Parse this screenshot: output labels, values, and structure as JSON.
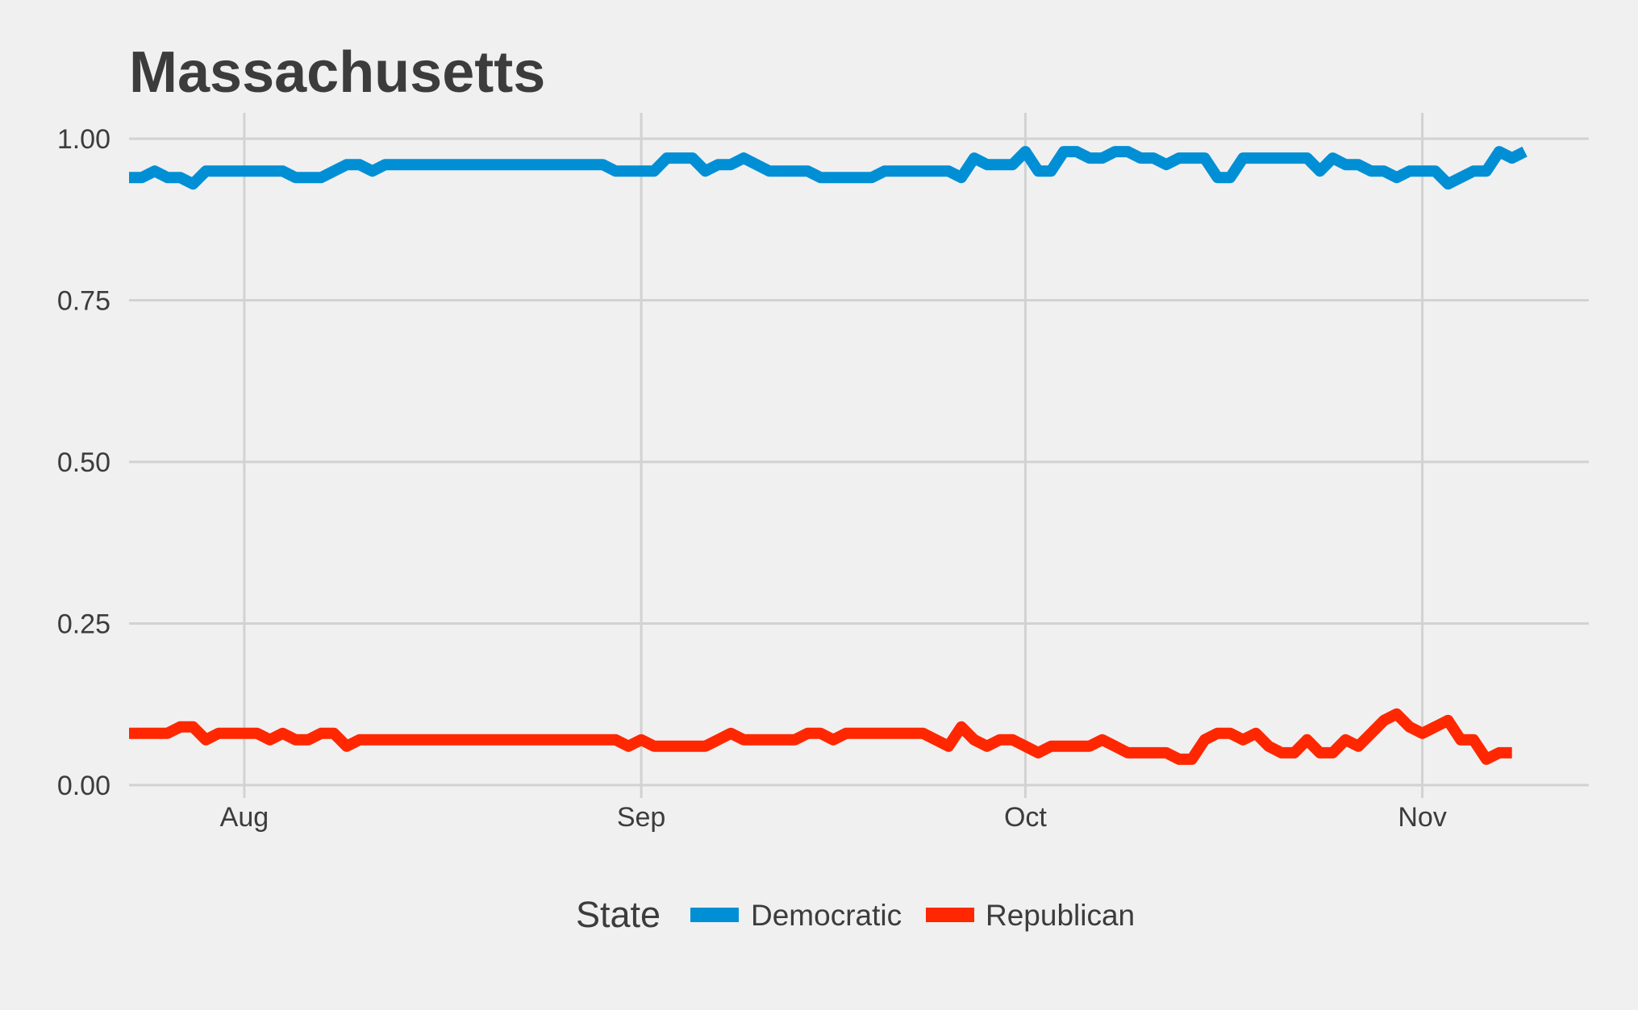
{
  "chart_data": {
    "type": "line",
    "title": "Massachusetts",
    "xlabel": "",
    "ylabel": "",
    "x_ticks": [
      "Aug",
      "Sep",
      "Oct",
      "Nov"
    ],
    "x_tick_dates": [
      "2016-08-01",
      "2016-09-01",
      "2016-10-01",
      "2016-11-01"
    ],
    "xlim": [
      "2016-07-23",
      "2016-11-14"
    ],
    "y_ticks": [
      "0.00",
      "0.25",
      "0.50",
      "0.75",
      "1.00"
    ],
    "ylim": [
      -0.02,
      1.04
    ],
    "grid": true,
    "legend": {
      "title": "State",
      "position": "bottom"
    },
    "start_date": "2016-07-23",
    "series": [
      {
        "name": "Democratic",
        "color": "#008fd5",
        "values": [
          0.94,
          0.94,
          0.95,
          0.94,
          0.94,
          0.93,
          0.95,
          0.95,
          0.95,
          0.95,
          0.95,
          0.95,
          0.95,
          0.94,
          0.94,
          0.94,
          0.95,
          0.96,
          0.96,
          0.95,
          0.96,
          0.96,
          0.96,
          0.96,
          0.96,
          0.96,
          0.96,
          0.96,
          0.96,
          0.96,
          0.96,
          0.96,
          0.96,
          0.96,
          0.96,
          0.96,
          0.96,
          0.96,
          0.95,
          0.95,
          0.95,
          0.95,
          0.97,
          0.97,
          0.97,
          0.95,
          0.96,
          0.96,
          0.97,
          0.96,
          0.95,
          0.95,
          0.95,
          0.95,
          0.94,
          0.94,
          0.94,
          0.94,
          0.94,
          0.95,
          0.95,
          0.95,
          0.95,
          0.95,
          0.95,
          0.94,
          0.97,
          0.96,
          0.96,
          0.96,
          0.98,
          0.95,
          0.95,
          0.98,
          0.98,
          0.97,
          0.97,
          0.98,
          0.98,
          0.97,
          0.97,
          0.96,
          0.97,
          0.97,
          0.97,
          0.94,
          0.94,
          0.97,
          0.97,
          0.97,
          0.97,
          0.97,
          0.97,
          0.95,
          0.97,
          0.96,
          0.96,
          0.95,
          0.95,
          0.94,
          0.95,
          0.95,
          0.95,
          0.93,
          0.94,
          0.95,
          0.95,
          0.98,
          0.97,
          0.98
        ]
      },
      {
        "name": "Republican",
        "color": "#ff2700",
        "values": [
          0.08,
          0.08,
          0.08,
          0.08,
          0.09,
          0.09,
          0.07,
          0.08,
          0.08,
          0.08,
          0.08,
          0.07,
          0.08,
          0.07,
          0.07,
          0.08,
          0.08,
          0.06,
          0.07,
          0.07,
          0.07,
          0.07,
          0.07,
          0.07,
          0.07,
          0.07,
          0.07,
          0.07,
          0.07,
          0.07,
          0.07,
          0.07,
          0.07,
          0.07,
          0.07,
          0.07,
          0.07,
          0.07,
          0.07,
          0.06,
          0.07,
          0.06,
          0.06,
          0.06,
          0.06,
          0.06,
          0.07,
          0.08,
          0.07,
          0.07,
          0.07,
          0.07,
          0.07,
          0.08,
          0.08,
          0.07,
          0.08,
          0.08,
          0.08,
          0.08,
          0.08,
          0.08,
          0.08,
          0.07,
          0.06,
          0.09,
          0.07,
          0.06,
          0.07,
          0.07,
          0.06,
          0.05,
          0.06,
          0.06,
          0.06,
          0.06,
          0.07,
          0.06,
          0.05,
          0.05,
          0.05,
          0.05,
          0.04,
          0.04,
          0.07,
          0.08,
          0.08,
          0.07,
          0.08,
          0.06,
          0.05,
          0.05,
          0.07,
          0.05,
          0.05,
          0.07,
          0.06,
          0.08,
          0.1,
          0.11,
          0.09,
          0.08,
          0.09,
          0.1,
          0.07,
          0.07,
          0.04,
          0.05,
          0.05
        ]
      }
    ]
  }
}
